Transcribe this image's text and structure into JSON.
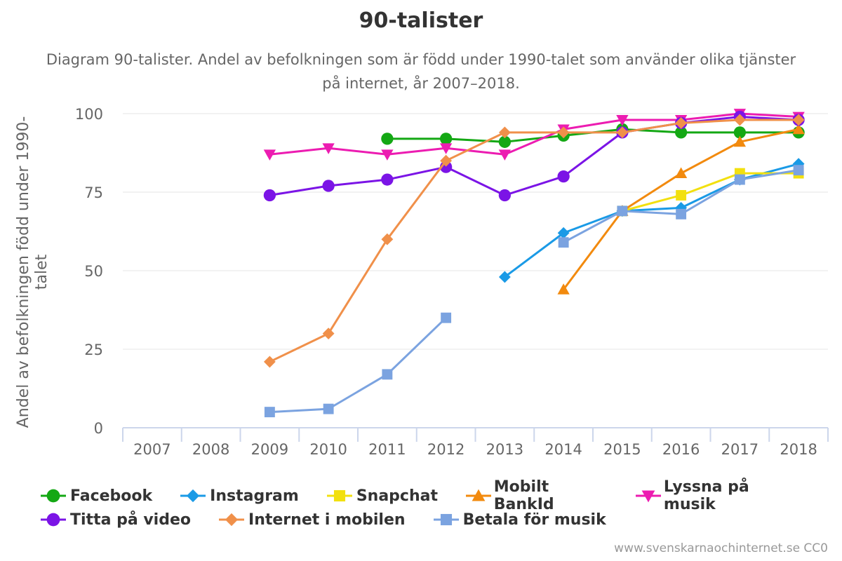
{
  "chart_data": {
    "type": "line",
    "title": "90-talister",
    "subtitle": "Diagram 90-talister. Andel av befolkningen som är född under 1990-talet som använder olika tjänster på internet, år 2007–2018.",
    "xlabel": "",
    "ylabel": "Andel av befolkningen född under 1990-talet",
    "categories": [
      "2007",
      "2008",
      "2009",
      "2010",
      "2011",
      "2012",
      "2013",
      "2014",
      "2015",
      "2016",
      "2017",
      "2018"
    ],
    "ylim": [
      0,
      100
    ],
    "yticks": [
      0,
      25,
      50,
      75,
      100
    ],
    "grid": true,
    "legend_position": "bottom",
    "series": [
      {
        "name": "Facebook",
        "color": "#14a814",
        "marker": "circle",
        "values": [
          null,
          null,
          null,
          null,
          92,
          92,
          91,
          93,
          95,
          94,
          94,
          94
        ]
      },
      {
        "name": "Instagram",
        "color": "#1a9ae6",
        "marker": "diamond",
        "values": [
          null,
          null,
          null,
          null,
          null,
          null,
          48,
          62,
          69,
          70,
          79,
          84
        ]
      },
      {
        "name": "Snapchat",
        "color": "#f2e00f",
        "marker": "square",
        "values": [
          null,
          null,
          null,
          null,
          null,
          null,
          null,
          null,
          69,
          74,
          81,
          81
        ]
      },
      {
        "name": "Mobilt BankId",
        "color": "#f28a0e",
        "marker": "triangle",
        "values": [
          null,
          null,
          null,
          null,
          null,
          null,
          null,
          44,
          69,
          81,
          91,
          95
        ]
      },
      {
        "name": "Lyssna på musik",
        "color": "#ec1cb1",
        "marker": "triangle-down",
        "values": [
          null,
          null,
          87,
          89,
          87,
          89,
          87,
          95,
          98,
          98,
          100,
          99
        ]
      },
      {
        "name": "Titta på video",
        "color": "#7b14e6",
        "marker": "circle",
        "values": [
          null,
          null,
          74,
          77,
          79,
          83,
          74,
          80,
          94,
          97,
          99,
          98
        ]
      },
      {
        "name": "Internet i mobilen",
        "color": "#f0904a",
        "marker": "diamond",
        "values": [
          null,
          null,
          21,
          30,
          60,
          85,
          94,
          94,
          94,
          97,
          98,
          98
        ]
      },
      {
        "name": "Betala för musik",
        "color": "#7ba3e0",
        "marker": "square",
        "values": [
          null,
          null,
          5,
          6,
          17,
          35,
          null,
          59,
          69,
          68,
          79,
          82
        ]
      }
    ]
  },
  "credits": "www.svenskarnaochinternet.se CC0"
}
